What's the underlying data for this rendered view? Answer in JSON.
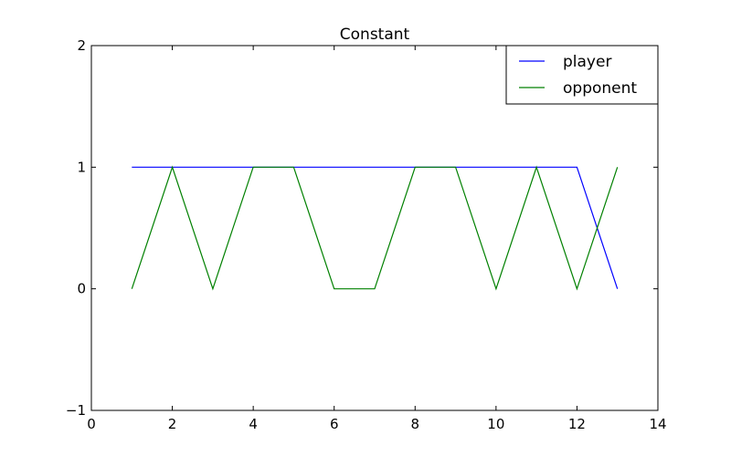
{
  "chart_data": {
    "type": "line",
    "title": "Constant",
    "xlabel": "",
    "ylabel": "",
    "xlim": [
      0,
      14
    ],
    "ylim": [
      -1,
      2
    ],
    "xticks": [
      0,
      2,
      4,
      6,
      8,
      10,
      12,
      14
    ],
    "yticks": [
      -1,
      0,
      1,
      2
    ],
    "xtick_labels": [
      "0",
      "2",
      "4",
      "6",
      "8",
      "10",
      "12",
      "14"
    ],
    "ytick_labels": [
      "−1",
      "0",
      "1",
      "2"
    ],
    "grid": false,
    "legend_position": "top-right",
    "x": [
      1,
      2,
      3,
      4,
      5,
      6,
      7,
      8,
      9,
      10,
      11,
      12,
      13
    ],
    "series": [
      {
        "name": "player",
        "color": "#0000ff",
        "values": [
          1,
          1,
          1,
          1,
          1,
          1,
          1,
          1,
          1,
          1,
          1,
          1,
          0
        ]
      },
      {
        "name": "opponent",
        "color": "#008000",
        "values": [
          0,
          1,
          0,
          1,
          1,
          0,
          0,
          1,
          1,
          0,
          1,
          0,
          1
        ]
      }
    ]
  }
}
